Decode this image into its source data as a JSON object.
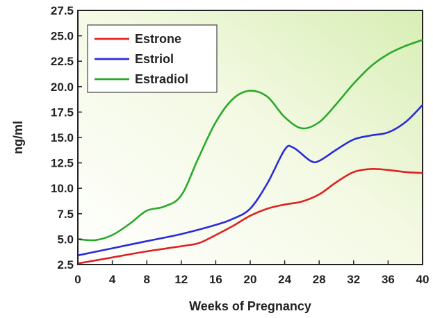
{
  "chart_data": {
    "type": "line",
    "xlabel": "Weeks of Pregnancy",
    "ylabel": "ng/ml",
    "xlim": [
      0,
      40
    ],
    "ylim": [
      2.5,
      27.5
    ],
    "xticks": [
      "0",
      "4",
      "8",
      "12",
      "16",
      "20",
      "24",
      "28",
      "32",
      "36",
      "40"
    ],
    "yticks": [
      "2.5",
      "5.0",
      "7.5",
      "10.0",
      "12.5",
      "15.0",
      "17.5",
      "20.0",
      "22.5",
      "25.0",
      "27.5"
    ],
    "grid": false,
    "legend_position": "top-left",
    "background": "gradient white to light green",
    "series": [
      {
        "name": "Estrone",
        "color": "#e02020",
        "points": [
          [
            0,
            2.6
          ],
          [
            4,
            3.2
          ],
          [
            8,
            3.8
          ],
          [
            12,
            4.3
          ],
          [
            14,
            4.6
          ],
          [
            16,
            5.4
          ],
          [
            18,
            6.3
          ],
          [
            20,
            7.3
          ],
          [
            22,
            8.0
          ],
          [
            24,
            8.4
          ],
          [
            26,
            8.7
          ],
          [
            28,
            9.4
          ],
          [
            30,
            10.6
          ],
          [
            32,
            11.6
          ],
          [
            34,
            11.9
          ],
          [
            36,
            11.8
          ],
          [
            38,
            11.6
          ],
          [
            40,
            11.5
          ]
        ]
      },
      {
        "name": "Estriol",
        "color": "#2a2ad8",
        "points": [
          [
            0,
            3.4
          ],
          [
            4,
            4.1
          ],
          [
            8,
            4.8
          ],
          [
            12,
            5.5
          ],
          [
            16,
            6.4
          ],
          [
            18,
            7.0
          ],
          [
            20,
            8.0
          ],
          [
            22,
            10.5
          ],
          [
            24,
            13.8
          ],
          [
            25,
            14.0
          ],
          [
            27,
            12.7
          ],
          [
            28,
            12.7
          ],
          [
            30,
            13.8
          ],
          [
            32,
            14.8
          ],
          [
            34,
            15.2
          ],
          [
            36,
            15.5
          ],
          [
            38,
            16.5
          ],
          [
            40,
            18.2
          ]
        ]
      },
      {
        "name": "Estradiol",
        "color": "#2aa82a",
        "points": [
          [
            0,
            5.0
          ],
          [
            2,
            4.9
          ],
          [
            4,
            5.4
          ],
          [
            6,
            6.5
          ],
          [
            8,
            7.8
          ],
          [
            10,
            8.2
          ],
          [
            12,
            9.3
          ],
          [
            14,
            13.0
          ],
          [
            16,
            16.5
          ],
          [
            18,
            18.8
          ],
          [
            20,
            19.6
          ],
          [
            22,
            19.0
          ],
          [
            24,
            17.0
          ],
          [
            26,
            15.9
          ],
          [
            28,
            16.5
          ],
          [
            30,
            18.3
          ],
          [
            32,
            20.3
          ],
          [
            34,
            22.0
          ],
          [
            36,
            23.2
          ],
          [
            38,
            24.0
          ],
          [
            40,
            24.6
          ]
        ]
      }
    ]
  }
}
